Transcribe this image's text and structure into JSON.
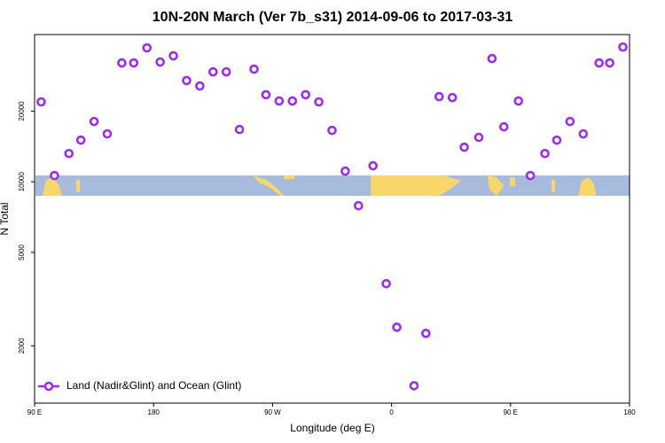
{
  "chart_data": {
    "type": "scatter",
    "title": "10N-20N March (Ver 7b_s31)   2014-09-06 to 2017-03-31",
    "x_label": "Longitude (deg E)",
    "y_label": "N Total",
    "yscale": "log",
    "xlim": [
      90,
      540
    ],
    "ylim": [
      1140,
      42400
    ],
    "xticks": [
      {
        "value": 90,
        "label": "90 E"
      },
      {
        "value": 180,
        "label": "180"
      },
      {
        "value": 270,
        "label": "90 W"
      },
      {
        "value": 360,
        "label": "0"
      },
      {
        "value": 450,
        "label": "90 E"
      },
      {
        "value": 540,
        "label": "180"
      }
    ],
    "yticks": [
      2000,
      5000,
      10000,
      20000
    ],
    "legend": "bottom-left",
    "series": [
      {
        "name": "Land (Nadir&Glint) and Ocean (Glint)",
        "color": "#9a2ef0",
        "x": [
          95,
          105,
          116,
          125,
          135,
          145,
          156,
          165,
          175,
          185,
          195,
          205,
          215,
          225,
          235,
          245,
          256,
          265,
          275,
          285,
          295,
          305,
          315,
          325,
          335,
          346,
          356,
          364,
          377,
          386,
          396,
          406,
          415,
          426,
          436,
          445,
          456,
          465,
          476,
          485,
          495,
          505,
          517,
          525,
          535
        ],
        "values": [
          21900,
          10630,
          13200,
          15050,
          18070,
          16000,
          32100,
          32100,
          37200,
          32400,
          34400,
          27000,
          25600,
          29400,
          29400,
          16700,
          30200,
          23500,
          22100,
          22100,
          23500,
          21900,
          16560,
          11100,
          7910,
          11700,
          3680,
          2400,
          1352,
          2260,
          23060,
          22850,
          14040,
          15460,
          33500,
          17150,
          22100,
          10630,
          13200,
          15050,
          18070,
          16000,
          32100,
          32100,
          37500
        ]
      }
    ]
  }
}
